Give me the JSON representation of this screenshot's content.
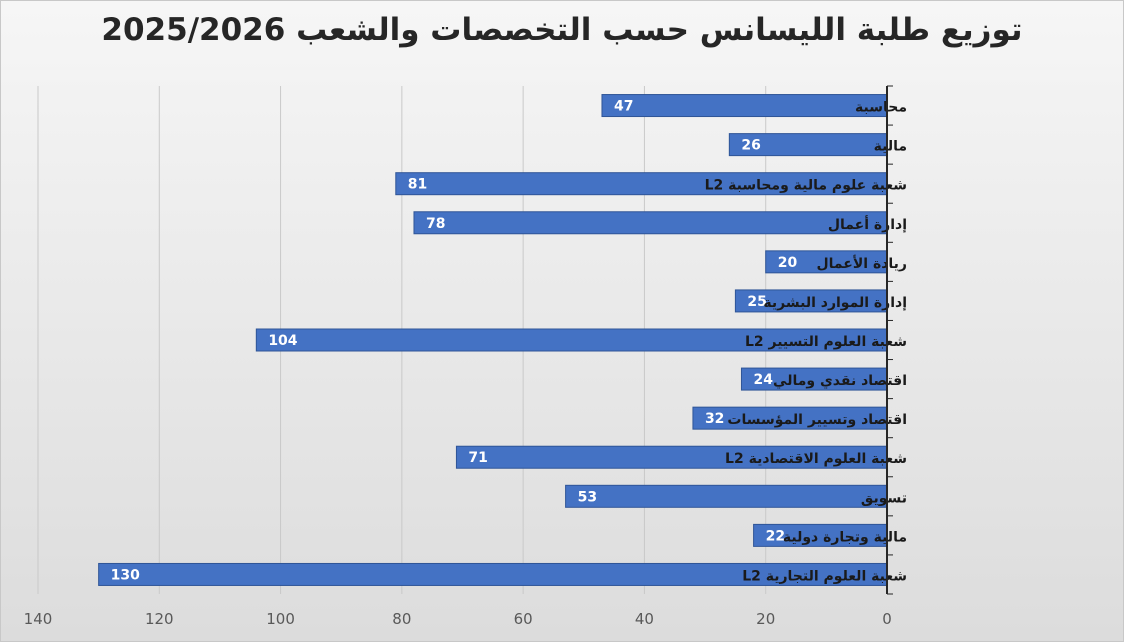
{
  "chart_data": {
    "type": "bar",
    "orientation": "horizontal",
    "title": "توزيع طلبة الليسانس حسب التخصصات والشعب 2025/2026",
    "categories": [
      "محاسبة",
      "مالية",
      "شعبة علوم مالية ومحاسبة L2",
      "إدارة أعمال",
      "ريادة الأعمال",
      "إدارة الموارد البشرية",
      "شعبة العلوم التسيير L2",
      "اقتصاد نقدي ومالي",
      "اقتصاد وتسيير المؤسسات",
      "شعبة العلوم الاقتصادية L2",
      "تسويق",
      "مالية وتجارة دولية",
      "شعبة العلوم التجارية L2"
    ],
    "values": [
      47,
      26,
      81,
      78,
      20,
      25,
      104,
      24,
      32,
      71,
      53,
      22,
      130
    ],
    "xlim": [
      0,
      140
    ],
    "x_ticks": [
      0,
      20,
      40,
      60,
      80,
      100,
      120,
      140
    ],
    "x_axis_reversed": true,
    "grid": true,
    "data_labels": true,
    "bar_color": "#4472C4",
    "bar_border_color": "#2F5597",
    "xlabel": "",
    "ylabel": ""
  }
}
